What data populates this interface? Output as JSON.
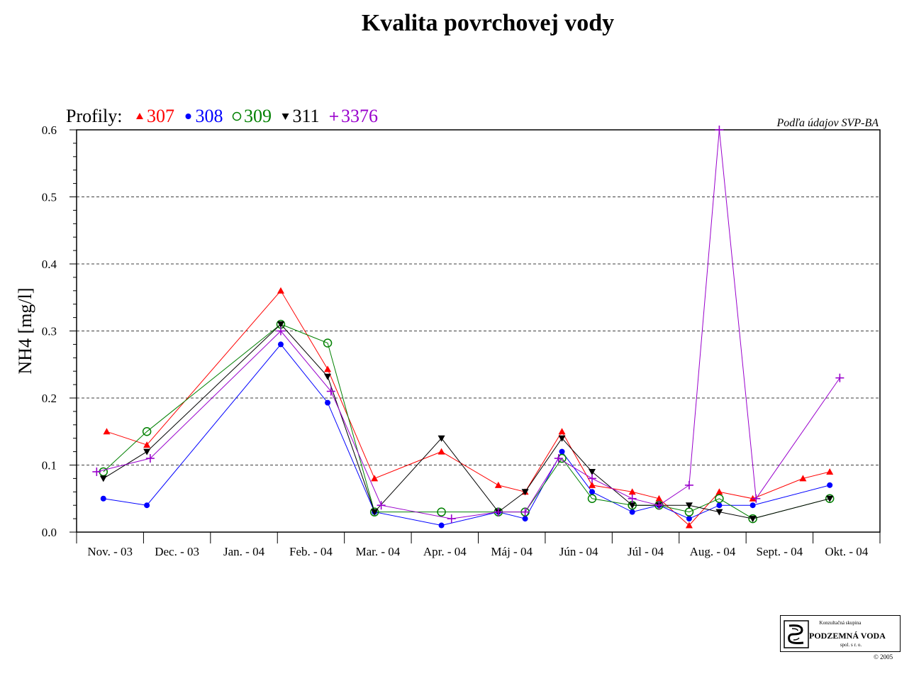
{
  "title": "Kvalita povrchovej vody",
  "source_note": "Podľa údajov SVP-BA",
  "legend_prefix": "Profily:",
  "logo": {
    "consult": "Konzultačná skupina",
    "name": "PODZEMNÁ VODA",
    "sub": "spol. s r. o."
  },
  "copyright": "© 2005",
  "chart_data": {
    "type": "line",
    "title": "Kvalita povrchovej vody",
    "ylabel": "NH4 [mg/l]",
    "xlabel": "",
    "ylim": [
      0,
      0.6
    ],
    "yticks": [
      0.0,
      0.1,
      0.2,
      0.3,
      0.4,
      0.5,
      0.6
    ],
    "ytick_labels": [
      "0.0",
      "0.1",
      "0.2",
      "0.3",
      "0.4",
      "0.5",
      "0.6"
    ],
    "categories": [
      "Nov. - 03",
      "Dec. - 03",
      "Jan. - 04",
      "Feb. - 04",
      "Mar. - 04",
      "Apr. - 04",
      "Máj - 04",
      "Jún - 04",
      "Júl - 04",
      "Aug. - 04",
      "Sept. - 04",
      "Okt. - 04"
    ],
    "x_units": "months since Nov. 2003",
    "grid": "horizontal dashed",
    "legend_position": "top-left",
    "series": [
      {
        "name": "307",
        "color": "#ff0000",
        "marker": "triangle-up",
        "points": [
          [
            0.45,
            0.15
          ],
          [
            1.05,
            0.13
          ],
          [
            3.05,
            0.36
          ],
          [
            3.75,
            0.243
          ],
          [
            4.45,
            0.08
          ],
          [
            5.45,
            0.12
          ],
          [
            6.3,
            0.07
          ],
          [
            6.7,
            0.06
          ],
          [
            7.25,
            0.15
          ],
          [
            7.7,
            0.07
          ],
          [
            8.3,
            0.06
          ],
          [
            8.7,
            0.05
          ],
          [
            9.15,
            0.01
          ],
          [
            9.6,
            0.06
          ],
          [
            10.1,
            0.05
          ],
          [
            10.85,
            0.08
          ],
          [
            11.25,
            0.09
          ]
        ]
      },
      {
        "name": "308",
        "color": "#0000ff",
        "marker": "circle-filled",
        "points": [
          [
            0.4,
            0.05
          ],
          [
            1.05,
            0.04
          ],
          [
            3.05,
            0.28
          ],
          [
            3.75,
            0.193
          ],
          [
            4.45,
            0.03
          ],
          [
            5.45,
            0.01
          ],
          [
            6.3,
            0.03
          ],
          [
            6.7,
            0.02
          ],
          [
            7.25,
            0.12
          ],
          [
            7.7,
            0.06
          ],
          [
            8.3,
            0.03
          ],
          [
            8.7,
            0.04
          ],
          [
            9.15,
            0.02
          ],
          [
            9.6,
            0.04
          ],
          [
            10.1,
            0.04
          ],
          [
            11.25,
            0.07
          ]
        ]
      },
      {
        "name": "309",
        "color": "#008000",
        "marker": "circle-open",
        "points": [
          [
            0.4,
            0.09
          ],
          [
            1.05,
            0.15
          ],
          [
            3.05,
            0.31
          ],
          [
            3.75,
            0.282
          ],
          [
            4.45,
            0.03
          ],
          [
            5.45,
            0.03
          ],
          [
            6.3,
            0.03
          ],
          [
            6.7,
            0.03
          ],
          [
            7.25,
            0.11
          ],
          [
            7.7,
            0.05
          ],
          [
            8.3,
            0.04
          ],
          [
            8.7,
            0.04
          ],
          [
            9.15,
            0.03
          ],
          [
            9.6,
            0.05
          ],
          [
            10.1,
            0.02
          ],
          [
            11.25,
            0.05
          ]
        ]
      },
      {
        "name": "311",
        "color": "#000000",
        "marker": "triangle-down",
        "points": [
          [
            0.4,
            0.08
          ],
          [
            1.05,
            0.12
          ],
          [
            3.05,
            0.31
          ],
          [
            3.75,
            0.232
          ],
          [
            4.45,
            0.03
          ],
          [
            5.45,
            0.14
          ],
          [
            6.3,
            0.03
          ],
          [
            6.7,
            0.06
          ],
          [
            7.25,
            0.14
          ],
          [
            7.7,
            0.09
          ],
          [
            8.3,
            0.04
          ],
          [
            8.7,
            0.04
          ],
          [
            9.15,
            0.04
          ],
          [
            9.6,
            0.03
          ],
          [
            10.1,
            0.02
          ],
          [
            11.25,
            0.05
          ]
        ]
      },
      {
        "name": "3376",
        "color": "#9900cc",
        "marker": "plus",
        "points": [
          [
            0.3,
            0.09
          ],
          [
            1.1,
            0.11
          ],
          [
            3.05,
            0.3
          ],
          [
            3.8,
            0.21
          ],
          [
            4.55,
            0.04
          ],
          [
            5.6,
            0.02
          ],
          [
            6.3,
            0.03
          ],
          [
            6.7,
            0.03
          ],
          [
            7.2,
            0.11
          ],
          [
            7.7,
            0.08
          ],
          [
            8.3,
            0.05
          ],
          [
            8.7,
            0.04
          ],
          [
            9.15,
            0.07
          ],
          [
            9.6,
            0.6
          ],
          [
            10.15,
            0.05
          ],
          [
            11.4,
            0.23
          ]
        ]
      }
    ]
  }
}
